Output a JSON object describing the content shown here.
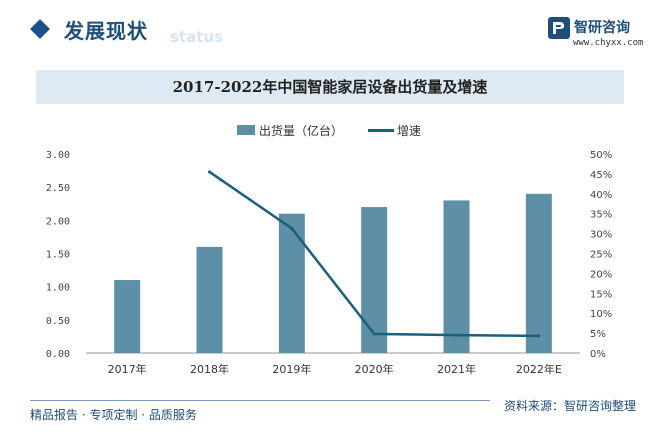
{
  "header": {
    "section_title": "发展现状",
    "section_subtitle": "status",
    "brand_name": "智研咨询",
    "brand_url": "www.chyxx.com"
  },
  "footer": {
    "left_text": "精品报告 · 专项定制 · 品质服务",
    "source_text": "资料来源：智研咨询整理"
  },
  "colors": {
    "bar": "#5d8fa6",
    "line": "#1a5f7f",
    "accent": "#1f4e79"
  },
  "chart_data": {
    "type": "bar",
    "title": "2017-2022年中国智能家居设备出货量及增速",
    "categories": [
      "2017年",
      "2018年",
      "2019年",
      "2020年",
      "2021年",
      "2022年E"
    ],
    "series": [
      {
        "name": "出货量（亿台）",
        "type": "bar",
        "axis": "left",
        "values": [
          1.1,
          1.6,
          2.1,
          2.2,
          2.3,
          2.4
        ]
      },
      {
        "name": "增速",
        "type": "line",
        "axis": "right",
        "values": [
          null,
          45.5,
          31.3,
          4.8,
          4.5,
          4.3
        ]
      }
    ],
    "y_left": {
      "range": [
        0,
        3
      ],
      "ticks": [
        "0.00",
        "0.50",
        "1.00",
        "1.50",
        "2.00",
        "2.50",
        "3.00"
      ]
    },
    "y_right": {
      "range": [
        0,
        50
      ],
      "ticks": [
        "0%",
        "5%",
        "10%",
        "15%",
        "20%",
        "25%",
        "30%",
        "35%",
        "40%",
        "45%",
        "50%"
      ]
    },
    "legend_position": "top-center",
    "grid": false
  }
}
